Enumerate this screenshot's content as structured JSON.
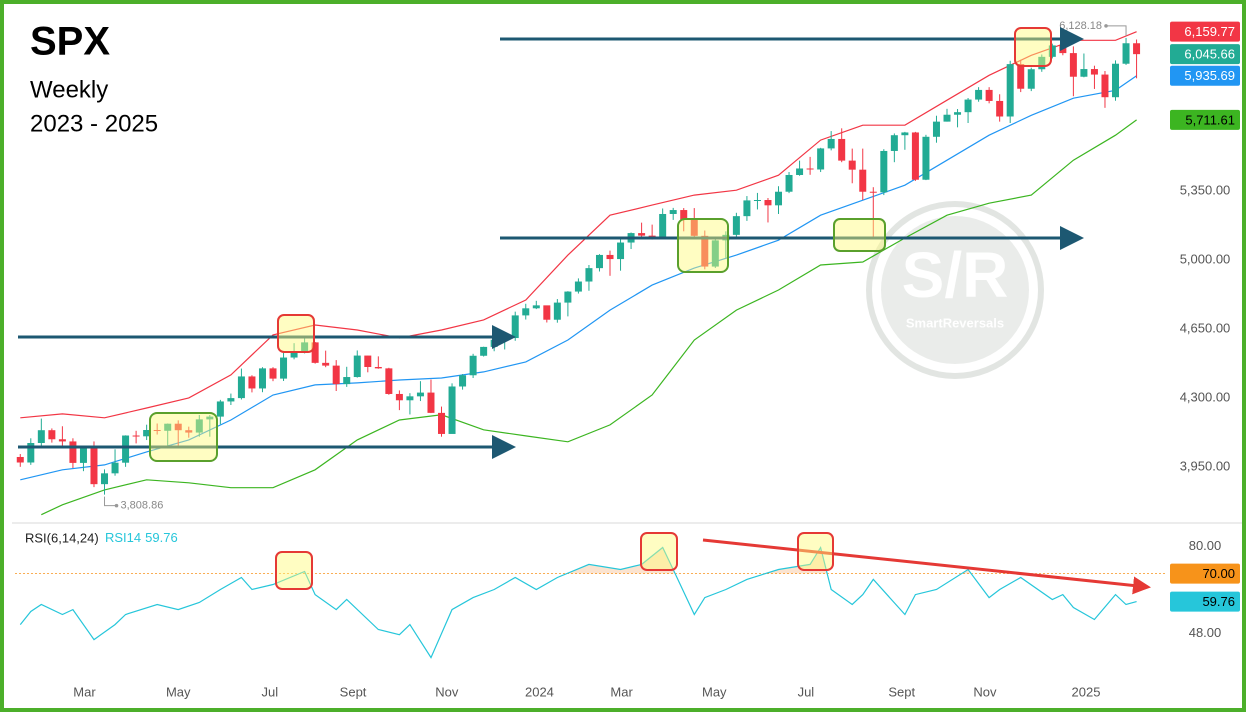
{
  "chart_data": [
    {
      "type": "candlestick",
      "title": "SPX",
      "subtitle": "Weekly",
      "date_range": "2023 - 2025",
      "categories": [
        null,
        null,
        null,
        null,
        null,
        null,
        null,
        null,
        null,
        null,
        null,
        null,
        null,
        null,
        null,
        null,
        null,
        null,
        null,
        null,
        null,
        null,
        null,
        null,
        null,
        null,
        null,
        null,
        null,
        null,
        null,
        null,
        null,
        null,
        null,
        null,
        null,
        null,
        null,
        null,
        null,
        null,
        null,
        null,
        null,
        null,
        null,
        null,
        null,
        null,
        null,
        null,
        null,
        null,
        null,
        null,
        null,
        null,
        null,
        null,
        null,
        null,
        null,
        null,
        null,
        null,
        null,
        null,
        null,
        null,
        null,
        null,
        null,
        null,
        null,
        null,
        null,
        null,
        null,
        null,
        null,
        null,
        null,
        null,
        null,
        null,
        null,
        null,
        null,
        null,
        null,
        null,
        null,
        null,
        null,
        null,
        null,
        null,
        null,
        null,
        null,
        null,
        null,
        null,
        null,
        null,
        null
      ],
      "open": [
        4000,
        3972,
        4071,
        4136,
        4090,
        4079,
        3970,
        4045,
        3862,
        3917,
        3971,
        4109,
        4105,
        4137,
        4133,
        4169,
        4136,
        4124,
        4191,
        4205,
        4282,
        4299,
        4409,
        4348,
        4450,
        4398,
        4505,
        4536,
        4582,
        4478,
        4464,
        4370,
        4406,
        4515,
        4457,
        4450,
        4320,
        4288,
        4308,
        4327,
        4224,
        4117,
        4358,
        4415,
        4514,
        4559,
        4595,
        4604,
        4719,
        4755,
        4770,
        4697,
        4784,
        4840,
        4891,
        4959,
        5026,
        5005,
        5089,
        5137,
        5124,
        5117,
        5234,
        5254,
        5204,
        5123,
        4967,
        5100,
        5128,
        5223,
        5303,
        5305,
        5278,
        5347,
        5432,
        5465,
        5460,
        5567,
        5615,
        5505,
        5459,
        5347,
        5344,
        5554,
        5634,
        5648,
        5408,
        5626,
        5703,
        5738,
        5751,
        5815,
        5864,
        5808,
        5729,
        5995,
        5870,
        5969,
        6032,
        6090,
        6051,
        5931,
        5970,
        5942,
        5827,
        5997,
        6101
      ],
      "high": [
        4015,
        4095,
        4195,
        4145,
        4156,
        4095,
        4049,
        4079,
        3937,
        4039,
        4110,
        4133,
        4164,
        4170,
        4170,
        4186,
        4154,
        4213,
        4213,
        4290,
        4322,
        4449,
        4415,
        4456,
        4456,
        4528,
        4578,
        4607,
        4584,
        4540,
        4492,
        4458,
        4541,
        4514,
        4511,
        4453,
        4338,
        4324,
        4385,
        4393,
        4256,
        4374,
        4421,
        4524,
        4560,
        4599,
        4609,
        4738,
        4778,
        4793,
        4754,
        4802,
        4842,
        4907,
        4975,
        5030,
        5048,
        5111,
        5140,
        5190,
        5180,
        5262,
        5265,
        5264,
        5264,
        5150,
        5114,
        5146,
        5240,
        5325,
        5341,
        5315,
        5375,
        5447,
        5505,
        5524,
        5570,
        5655,
        5669,
        5566,
        5566,
        5370,
        5563,
        5643,
        5651,
        5651,
        5636,
        5733,
        5768,
        5767,
        5823,
        5878,
        5878,
        5842,
        6012,
        6017,
        5977,
        6044,
        6099,
        6100,
        6085,
        6049,
        5987,
        5960,
        6014,
        6128.18,
        6120
      ],
      "low": [
        3950,
        3960,
        4048,
        4073,
        4045,
        3944,
        3928,
        3847,
        3808.86,
        3905,
        3950,
        4069,
        4086,
        4114,
        4049,
        4048,
        4098,
        4103,
        4103,
        4166,
        4264,
        4292,
        4328,
        4329,
        4385,
        4386,
        4496,
        4526,
        4474,
        4456,
        4335,
        4356,
        4403,
        4430,
        4448,
        4316,
        4238,
        4216,
        4284,
        4223,
        4103,
        4127,
        4342,
        4401,
        4510,
        4537,
        4546,
        4590,
        4698,
        4751,
        4683,
        4682,
        4714,
        4830,
        4844,
        4942,
        4920,
        4946,
        5056,
        5108,
        5104,
        5108,
        5204,
        5146,
        5114,
        4953,
        4960,
        5011,
        5114,
        5199,
        5257,
        5191,
        5234,
        5340,
        5428,
        5433,
        5447,
        5557,
        5497,
        5390,
        5305,
        5119,
        5330,
        5497,
        5560,
        5402,
        5406,
        5596,
        5703,
        5674,
        5696,
        5804,
        5796,
        5703,
        5696,
        5853,
        5858,
        5956,
        6024,
        6040,
        5832,
        5928,
        5869,
        5773,
        5809,
        5991,
        5923
      ],
      "close": [
        3972,
        4071,
        4136,
        4090,
        4079,
        3970,
        4045,
        3862,
        3917,
        3971,
        4109,
        4105,
        4137,
        4133,
        4169,
        4136,
        4124,
        4191,
        4205,
        4282,
        4299,
        4409,
        4348,
        4450,
        4398,
        4505,
        4536,
        4582,
        4478,
        4464,
        4370,
        4406,
        4515,
        4457,
        4450,
        4320,
        4288,
        4308,
        4327,
        4224,
        4117,
        4358,
        4415,
        4514,
        4559,
        4595,
        4604,
        4719,
        4755,
        4770,
        4697,
        4784,
        4840,
        4891,
        4959,
        5026,
        5005,
        5089,
        5137,
        5124,
        5117,
        5234,
        5254,
        5204,
        5123,
        4967,
        5100,
        5128,
        5223,
        5303,
        5305,
        5278,
        5347,
        5432,
        5465,
        5460,
        5567,
        5615,
        5505,
        5459,
        5347,
        5344,
        5554,
        5634,
        5648,
        5408,
        5626,
        5703,
        5738,
        5751,
        5815,
        5864,
        5808,
        5729,
        5995,
        5870,
        5969,
        6032,
        6090,
        6051,
        5931,
        5970,
        5942,
        5827,
        5997,
        6101,
        6045.66
      ],
      "up_color": "#22ab94",
      "down_color": "#f23645",
      "close_last_label": "6,045.66",
      "close_label_color": "#22ab94",
      "high_label": "6,128.18",
      "low_label": "3,808.86",
      "bands": [
        {
          "color": "#f23645",
          "x": [
            0,
            4,
            8,
            12,
            16,
            20,
            24,
            28,
            32,
            36,
            40,
            44,
            48,
            52,
            56,
            60,
            64,
            68,
            72,
            76,
            80,
            84,
            88,
            92,
            96,
            100,
            104,
            106
          ],
          "values": [
            4199,
            4219,
            4199,
            4249,
            4300,
            4417,
            4620,
            4670,
            4645,
            4604,
            4645,
            4696,
            4797,
            5025,
            5228,
            5279,
            5330,
            5355,
            5431,
            5609,
            5685,
            5685,
            5812,
            5938,
            6040,
            6116,
            6116,
            6159.77
          ],
          "last_label": "6,159.77",
          "text_color": "#ffffff"
        },
        {
          "color": "#2196f3",
          "x": [
            0,
            4,
            8,
            12,
            16,
            20,
            24,
            28,
            32,
            36,
            40,
            44,
            48,
            52,
            56,
            60,
            64,
            68,
            72,
            76,
            80,
            84,
            88,
            92,
            96,
            100,
            104,
            106
          ],
          "values": [
            3884,
            3935,
            3960,
            4026,
            4087,
            4188,
            4315,
            4366,
            4376,
            4391,
            4401,
            4432,
            4483,
            4594,
            4746,
            4873,
            4959,
            5025,
            5101,
            5228,
            5304,
            5380,
            5507,
            5634,
            5735,
            5822,
            5862,
            5935.69
          ],
          "last_label": "5,935.69",
          "text_color": "#ffffff"
        },
        {
          "color": "#3cb521",
          "x": [
            2,
            4,
            8,
            12,
            16,
            20,
            24,
            28,
            32,
            36,
            40,
            44,
            48,
            52,
            56,
            60,
            64,
            68,
            72,
            76,
            80,
            84,
            88,
            92,
            96,
            100,
            104,
            106
          ],
          "values": [
            3707,
            3757,
            3833,
            3884,
            3869,
            3844,
            3844,
            3935,
            4087,
            4188,
            4214,
            4138,
            4107,
            4077,
            4163,
            4315,
            4594,
            4746,
            4848,
            4975,
            4990,
            5112,
            5228,
            5289,
            5330,
            5507,
            5634,
            5711.61
          ],
          "last_label": "5,711.61",
          "text_color": "#000000"
        }
      ],
      "xlim": [
        -0.5,
        108.7
      ],
      "ylim": [
        3680,
        6280
      ],
      "yticks": [
        {
          "value": 3950,
          "label": "3,950.00"
        },
        {
          "value": 4300,
          "label": "4,300.00"
        },
        {
          "value": 4650,
          "label": "4,650.00"
        },
        {
          "value": 5000,
          "label": "5,000.00"
        },
        {
          "value": 5350,
          "label": "5,350.00"
        }
      ],
      "grid": false
    },
    {
      "type": "line",
      "title": "RSI(6,14,24)",
      "series": [
        {
          "name": "RSI14",
          "color": "#26c6da",
          "last_label": "59.76",
          "text_color": "#000000",
          "x": [
            0,
            1,
            2,
            4,
            5,
            7,
            9,
            10,
            13,
            15,
            17,
            19,
            21,
            22,
            24,
            27,
            28,
            30,
            31,
            34,
            36,
            37,
            39,
            41,
            43,
            45,
            47,
            49,
            51,
            54,
            57,
            59,
            61,
            62,
            64,
            65,
            67,
            69,
            72,
            75,
            76,
            77,
            79,
            80,
            81,
            84,
            85,
            87,
            90,
            92,
            93,
            95,
            98,
            99,
            100,
            102,
            104,
            105,
            106
          ],
          "values": [
            51.3,
            56.1,
            58.7,
            55.0,
            56.8,
            45.8,
            51.3,
            55.0,
            58.7,
            56.8,
            59.4,
            64.2,
            68.6,
            64.2,
            66.0,
            70.8,
            62.3,
            56.8,
            60.5,
            49.5,
            47.6,
            51.3,
            39.2,
            56.8,
            61.2,
            64.2,
            68.6,
            64.2,
            68.6,
            73.4,
            71.5,
            73.4,
            79.6,
            71.5,
            55.0,
            61.2,
            64.2,
            67.9,
            71.5,
            73.4,
            79.6,
            64.2,
            58.7,
            62.3,
            67.9,
            55.0,
            62.3,
            64.2,
            71.5,
            61.2,
            64.2,
            68.6,
            60.5,
            62.3,
            57.6,
            53.2,
            62.3,
            58.7,
            59.76
          ]
        }
      ],
      "levels": [
        {
          "value": 70,
          "label": "70.00",
          "color": "#f7931a",
          "fill": "#fbe3cf"
        }
      ],
      "xlim": [
        -0.5,
        108.7
      ],
      "ylim": [
        31,
        86
      ],
      "yticks": [
        {
          "value": 80,
          "label": "80.00"
        },
        {
          "value": 48,
          "label": "48.00"
        }
      ],
      "xticks": [
        {
          "value": 6.1,
          "label": "Mar"
        },
        {
          "value": 15.0,
          "label": "May"
        },
        {
          "value": 23.7,
          "label": "Jul"
        },
        {
          "value": 31.6,
          "label": "Sept"
        },
        {
          "value": 40.5,
          "label": "Nov"
        },
        {
          "value": 49.3,
          "label": "2024"
        },
        {
          "value": 57.1,
          "label": "Mar"
        },
        {
          "value": 65.9,
          "label": "May"
        },
        {
          "value": 74.6,
          "label": "Jul"
        },
        {
          "value": 83.7,
          "label": "Sept"
        },
        {
          "value": 91.6,
          "label": "Nov"
        },
        {
          "value": 101.2,
          "label": "2025"
        }
      ],
      "grid": false
    }
  ],
  "watermark": {
    "mark": "S/R",
    "brand": "SmartReversals"
  }
}
